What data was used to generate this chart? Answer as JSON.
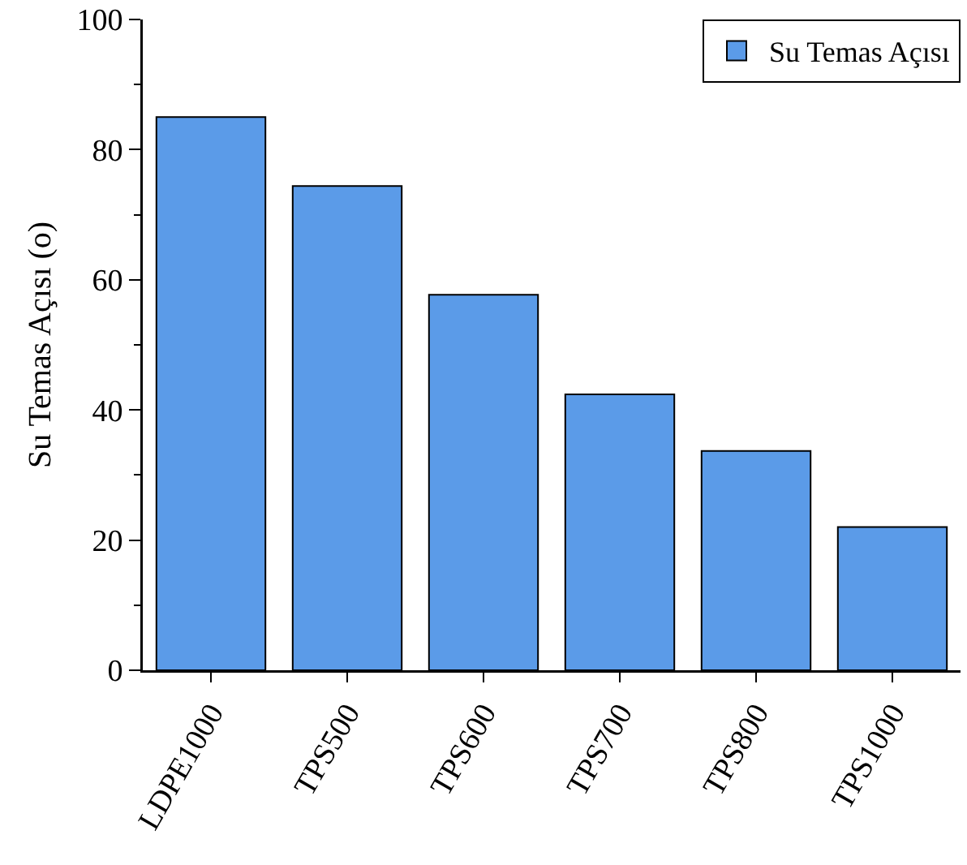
{
  "chart_data": {
    "type": "bar",
    "ylabel": "Su Temas Açısı (o)",
    "categories": [
      "LDPE1000",
      "TPS500",
      "TPS600",
      "TPS700",
      "TPS800",
      "TPS1000"
    ],
    "series": [
      {
        "name": "Su Temas Açısı",
        "color": "#5b9be8",
        "values": [
          85,
          74.4,
          57.7,
          42.4,
          33.7,
          22
        ]
      }
    ],
    "ylim": [
      0,
      100
    ],
    "yticks": [
      0,
      {
        "value": 10,
        "label": null
      },
      20,
      {
        "value": 30,
        "label": null
      },
      40,
      {
        "value": 50,
        "label": null
      },
      60,
      {
        "value": 70,
        "label": null
      },
      80,
      {
        "value": 90,
        "label": null
      },
      100
    ],
    "grid": false,
    "legend": "top right"
  }
}
